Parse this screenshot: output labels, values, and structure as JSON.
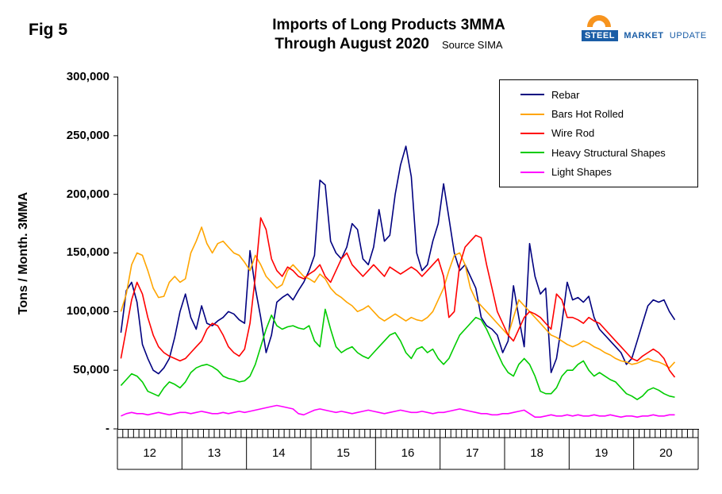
{
  "fig_label": "Fig 5",
  "title_line1": "Imports of Long Products 3MMA",
  "title_line2": "Through August 2020",
  "source": "Source SIMA",
  "logo": {
    "steel": "STEEL",
    "market": "MARKET",
    "update": "UPDATE"
  },
  "y_axis_title": "Tons / Month. 3MMA",
  "y_ticks": [
    "300,000",
    "250,000",
    "200,000",
    "150,000",
    "100,000",
    "50,000",
    "-"
  ],
  "x_year_labels": [
    "12",
    "13",
    "14",
    "15",
    "16",
    "17",
    "18",
    "19",
    "20"
  ],
  "chart_data": {
    "type": "line",
    "x_unit": "month",
    "x_start": "2012-01",
    "x_end": "2020-08",
    "x_axis_total_months": 108,
    "ylim": [
      0,
      300000
    ],
    "y_tick_step": 50000,
    "grid": false,
    "legend_position": "top-right-inside",
    "ylabel": "Tons / Month. 3MMA",
    "title": "Imports of Long Products 3MMA Through August 2020",
    "series": [
      {
        "name": "Rebar",
        "color": "#000080",
        "values": [
          82000,
          118000,
          125000,
          108000,
          72000,
          60000,
          50000,
          47000,
          52000,
          60000,
          78000,
          100000,
          115000,
          95000,
          85000,
          105000,
          90000,
          88000,
          92000,
          95000,
          100000,
          98000,
          93000,
          90000,
          152000,
          120000,
          95000,
          65000,
          80000,
          108000,
          112000,
          115000,
          110000,
          118000,
          125000,
          135000,
          148000,
          212000,
          208000,
          160000,
          150000,
          145000,
          155000,
          175000,
          170000,
          145000,
          140000,
          155000,
          187000,
          160000,
          165000,
          200000,
          225000,
          241000,
          215000,
          150000,
          135000,
          140000,
          160000,
          175000,
          209000,
          180000,
          150000,
          135000,
          140000,
          130000,
          120000,
          95000,
          88000,
          85000,
          80000,
          65000,
          75000,
          122000,
          95000,
          70000,
          158000,
          130000,
          115000,
          120000,
          48000,
          60000,
          90000,
          125000,
          110000,
          112000,
          108000,
          113000,
          95000,
          85000,
          80000,
          75000,
          70000,
          65000,
          55000,
          60000,
          75000,
          90000,
          105000,
          110000,
          108000,
          110000,
          100000,
          93000
        ]
      },
      {
        "name": "Bars Hot Rolled",
        "color": "#FFA500",
        "values": [
          100000,
          115000,
          140000,
          150000,
          148000,
          135000,
          120000,
          112000,
          113000,
          125000,
          130000,
          125000,
          128000,
          150000,
          160000,
          172000,
          158000,
          150000,
          158000,
          160000,
          155000,
          150000,
          148000,
          142000,
          135000,
          148000,
          140000,
          130000,
          125000,
          120000,
          123000,
          135000,
          140000,
          135000,
          130000,
          128000,
          125000,
          132000,
          128000,
          120000,
          115000,
          112000,
          108000,
          105000,
          100000,
          102000,
          105000,
          100000,
          95000,
          92000,
          95000,
          98000,
          95000,
          92000,
          95000,
          93000,
          92000,
          95000,
          100000,
          110000,
          120000,
          135000,
          148000,
          150000,
          140000,
          120000,
          110000,
          105000,
          100000,
          95000,
          90000,
          85000,
          80000,
          95000,
          110000,
          105000,
          100000,
          95000,
          90000,
          85000,
          80000,
          78000,
          75000,
          72000,
          70000,
          72000,
          75000,
          73000,
          70000,
          68000,
          65000,
          63000,
          60000,
          58000,
          57000,
          55000,
          56000,
          58000,
          60000,
          58000,
          57000,
          55000,
          52000,
          57000
        ]
      },
      {
        "name": "Wire Rod",
        "color": "#FF0000",
        "values": [
          60000,
          85000,
          110000,
          125000,
          115000,
          95000,
          80000,
          70000,
          65000,
          62000,
          60000,
          58000,
          60000,
          65000,
          70000,
          75000,
          85000,
          90000,
          88000,
          80000,
          70000,
          65000,
          62000,
          68000,
          90000,
          130000,
          180000,
          170000,
          145000,
          135000,
          130000,
          138000,
          135000,
          130000,
          128000,
          132000,
          135000,
          140000,
          130000,
          125000,
          135000,
          145000,
          150000,
          140000,
          135000,
          130000,
          135000,
          140000,
          135000,
          130000,
          138000,
          135000,
          132000,
          135000,
          138000,
          135000,
          130000,
          135000,
          140000,
          145000,
          130000,
          95000,
          100000,
          140000,
          155000,
          160000,
          165000,
          163000,
          140000,
          120000,
          100000,
          90000,
          80000,
          75000,
          85000,
          95000,
          100000,
          98000,
          95000,
          90000,
          85000,
          115000,
          110000,
          95000,
          95000,
          93000,
          90000,
          95000,
          92000,
          90000,
          85000,
          80000,
          75000,
          70000,
          65000,
          60000,
          58000,
          62000,
          65000,
          68000,
          65000,
          60000,
          50000,
          44000
        ]
      },
      {
        "name": "Heavy Structural Shapes",
        "color": "#00CC00",
        "values": [
          37000,
          42000,
          47000,
          45000,
          40000,
          32000,
          30000,
          28000,
          35000,
          40000,
          38000,
          35000,
          40000,
          48000,
          52000,
          54000,
          55000,
          53000,
          50000,
          45000,
          43000,
          42000,
          40000,
          41000,
          45000,
          55000,
          70000,
          85000,
          97000,
          88000,
          85000,
          87000,
          88000,
          86000,
          85000,
          88000,
          75000,
          70000,
          102000,
          85000,
          70000,
          65000,
          68000,
          70000,
          65000,
          62000,
          60000,
          65000,
          70000,
          75000,
          80000,
          82000,
          75000,
          65000,
          60000,
          68000,
          70000,
          65000,
          68000,
          60000,
          55000,
          60000,
          70000,
          80000,
          85000,
          90000,
          95000,
          93000,
          85000,
          75000,
          65000,
          55000,
          48000,
          45000,
          55000,
          60000,
          55000,
          45000,
          32000,
          30000,
          30000,
          35000,
          45000,
          50000,
          50000,
          55000,
          58000,
          50000,
          45000,
          48000,
          45000,
          42000,
          40000,
          35000,
          30000,
          28000,
          25000,
          28000,
          33000,
          35000,
          33000,
          30000,
          28000,
          27000
        ]
      },
      {
        "name": "Light Shapes",
        "color": "#FF00FF",
        "values": [
          11000,
          13000,
          14000,
          13000,
          13000,
          12000,
          13000,
          14000,
          13000,
          12000,
          13000,
          14000,
          14000,
          13000,
          14000,
          15000,
          14000,
          13000,
          13000,
          14000,
          13000,
          14000,
          15000,
          14000,
          15000,
          16000,
          17000,
          18000,
          19000,
          20000,
          19000,
          18000,
          17000,
          13000,
          12000,
          14000,
          16000,
          17000,
          16000,
          15000,
          14000,
          15000,
          14000,
          13000,
          14000,
          15000,
          16000,
          15000,
          14000,
          13000,
          14000,
          15000,
          16000,
          15000,
          14000,
          14000,
          15000,
          14000,
          13000,
          14000,
          14000,
          15000,
          16000,
          17000,
          16000,
          15000,
          14000,
          13000,
          13000,
          12000,
          12000,
          13000,
          13000,
          14000,
          15000,
          16000,
          13000,
          10000,
          10000,
          11000,
          12000,
          11000,
          11000,
          12000,
          11000,
          12000,
          11000,
          11000,
          12000,
          11000,
          11000,
          12000,
          11000,
          10000,
          11000,
          11000,
          10000,
          11000,
          11000,
          12000,
          11000,
          11000,
          12000,
          12000
        ]
      }
    ]
  }
}
